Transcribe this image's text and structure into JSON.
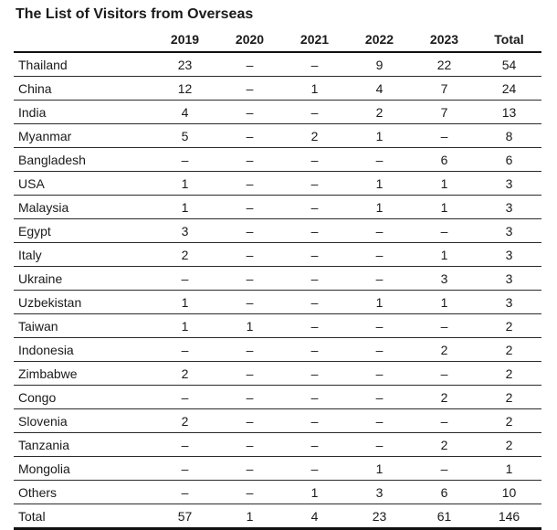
{
  "title": "The List of Visitors from Overseas",
  "table": {
    "row_header_label": "",
    "columns": [
      "2019",
      "2020",
      "2021",
      "2022",
      "2023",
      "Total"
    ],
    "empty_marker": "–",
    "rows": [
      {
        "label": "Thailand",
        "values": [
          "23",
          "–",
          "–",
          "9",
          "22",
          "54"
        ]
      },
      {
        "label": "China",
        "values": [
          "12",
          "–",
          "1",
          "4",
          "7",
          "24"
        ]
      },
      {
        "label": "India",
        "values": [
          "4",
          "–",
          "–",
          "2",
          "7",
          "13"
        ]
      },
      {
        "label": "Myanmar",
        "values": [
          "5",
          "–",
          "2",
          "1",
          "–",
          "8"
        ]
      },
      {
        "label": "Bangladesh",
        "values": [
          "–",
          "–",
          "–",
          "–",
          "6",
          "6"
        ]
      },
      {
        "label": "USA",
        "values": [
          "1",
          "–",
          "–",
          "1",
          "1",
          "3"
        ]
      },
      {
        "label": "Malaysia",
        "values": [
          "1",
          "–",
          "–",
          "1",
          "1",
          "3"
        ]
      },
      {
        "label": "Egypt",
        "values": [
          "3",
          "–",
          "–",
          "–",
          "–",
          "3"
        ]
      },
      {
        "label": "Italy",
        "values": [
          "2",
          "–",
          "–",
          "–",
          "1",
          "3"
        ]
      },
      {
        "label": "Ukraine",
        "values": [
          "–",
          "–",
          "–",
          "–",
          "3",
          "3"
        ]
      },
      {
        "label": "Uzbekistan",
        "values": [
          "1",
          "–",
          "–",
          "1",
          "1",
          "3"
        ]
      },
      {
        "label": "Taiwan",
        "values": [
          "1",
          "1",
          "–",
          "–",
          "–",
          "2"
        ]
      },
      {
        "label": "Indonesia",
        "values": [
          "–",
          "–",
          "–",
          "–",
          "2",
          "2"
        ]
      },
      {
        "label": "Zimbabwe",
        "values": [
          "2",
          "–",
          "–",
          "–",
          "–",
          "2"
        ]
      },
      {
        "label": "Congo",
        "values": [
          "–",
          "–",
          "–",
          "–",
          "2",
          "2"
        ]
      },
      {
        "label": "Slovenia",
        "values": [
          "2",
          "–",
          "–",
          "–",
          "–",
          "2"
        ]
      },
      {
        "label": "Tanzania",
        "values": [
          "–",
          "–",
          "–",
          "–",
          "2",
          "2"
        ]
      },
      {
        "label": "Mongolia",
        "values": [
          "–",
          "–",
          "–",
          "1",
          "–",
          "1"
        ]
      },
      {
        "label": "Others",
        "values": [
          "–",
          "–",
          "1",
          "3",
          "6",
          "10"
        ]
      },
      {
        "label": "Total",
        "values": [
          "57",
          "1",
          "4",
          "23",
          "61",
          "146"
        ]
      }
    ],
    "total_row_label": "Total"
  },
  "colors": {
    "text": "#1a1a1a",
    "header_rule": "#111111",
    "row_rule": "#2b2b2b",
    "background": "#ffffff"
  }
}
